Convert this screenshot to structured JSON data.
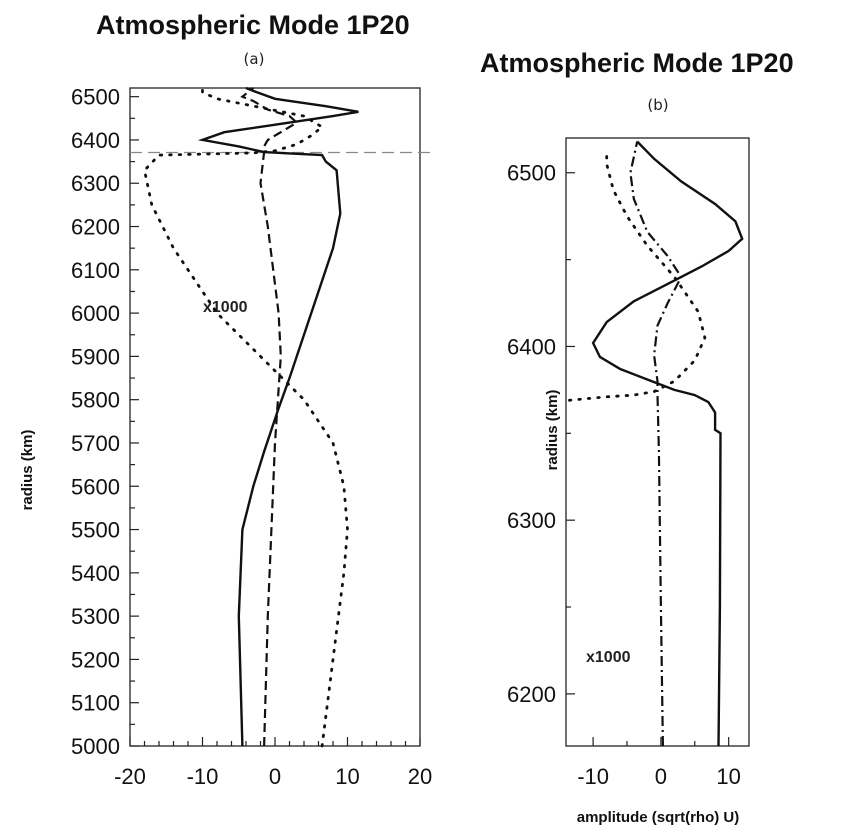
{
  "chart_data": [
    {
      "type": "line",
      "title": "Atmospheric Mode 1P20",
      "subtitle": "(a)",
      "xlabel": "",
      "ylabel": "radius (km)",
      "xlim": [
        -20,
        20
      ],
      "ylim": [
        5000,
        6520
      ],
      "xticks": [
        -20,
        -10,
        0,
        10,
        20
      ],
      "yticks": [
        5000,
        5100,
        5200,
        5300,
        5400,
        5500,
        5600,
        5700,
        5800,
        5900,
        6000,
        6100,
        6200,
        6300,
        6400,
        6500
      ],
      "reference_line_y": 6371,
      "annotation": "x1000",
      "series": [
        {
          "style": "solid",
          "points": [
            [
              -4.5,
              5000
            ],
            [
              -5,
              5300
            ],
            [
              -4.5,
              5500
            ],
            [
              -3,
              5600
            ],
            [
              -1.5,
              5680
            ],
            [
              0.5,
              5780
            ],
            [
              2,
              5850
            ],
            [
              4,
              5950
            ],
            [
              6,
              6050
            ],
            [
              8,
              6150
            ],
            [
              9,
              6230
            ],
            [
              8.5,
              6330
            ],
            [
              7,
              6350
            ],
            [
              6.5,
              6365
            ],
            [
              3,
              6368
            ],
            [
              -1.5,
              6372
            ],
            [
              -5,
              6385
            ],
            [
              -10,
              6400
            ],
            [
              -7,
              6418
            ],
            [
              2,
              6440
            ],
            [
              8,
              6455
            ],
            [
              11.5,
              6465
            ],
            [
              7,
              6478
            ],
            [
              0,
              6495
            ],
            [
              -2.5,
              6510
            ],
            [
              -4,
              6520
            ]
          ]
        },
        {
          "style": "dashed",
          "points": [
            [
              -1.5,
              5000
            ],
            [
              -1,
              5300
            ],
            [
              -0.5,
              5500
            ],
            [
              0,
              5700
            ],
            [
              0.8,
              5900
            ],
            [
              0.5,
              6000
            ],
            [
              -1,
              6200
            ],
            [
              -2,
              6300
            ],
            [
              -1.5,
              6372
            ],
            [
              -1.5,
              6385
            ],
            [
              -1,
              6400
            ],
            [
              1,
              6420
            ],
            [
              3,
              6440
            ],
            [
              2,
              6455
            ],
            [
              -1,
              6470
            ],
            [
              -3,
              6490
            ],
            [
              -4.5,
              6500
            ],
            [
              -3,
              6520
            ]
          ]
        },
        {
          "style": "dotted",
          "points": [
            [
              6.5,
              5000
            ],
            [
              8,
              5200
            ],
            [
              9.5,
              5400
            ],
            [
              10,
              5500
            ],
            [
              9.5,
              5600
            ],
            [
              8,
              5700
            ],
            [
              4,
              5800
            ],
            [
              -2,
              5900
            ],
            [
              -8,
              6000
            ],
            [
              -14,
              6150
            ],
            [
              -17,
              6250
            ],
            [
              -18,
              6330
            ],
            [
              -16,
              6365
            ],
            [
              -3,
              6370
            ],
            [
              0,
              6375
            ],
            [
              3,
              6390
            ],
            [
              5,
              6410
            ],
            [
              6.5,
              6430
            ],
            [
              4,
              6455
            ],
            [
              -2,
              6475
            ],
            [
              -8,
              6495
            ],
            [
              -10,
              6510
            ],
            [
              -10,
              6520
            ]
          ]
        }
      ]
    },
    {
      "type": "line",
      "title": "Atmospheric Mode 1P20",
      "subtitle": "(b)",
      "xlabel": "amplitude (sqrt(rho) U)",
      "ylabel": "radius (km)",
      "xlim": [
        -14,
        13
      ],
      "ylim": [
        6170,
        6520
      ],
      "xticks": [
        -10,
        0,
        10
      ],
      "yticks": [
        6200,
        6300,
        6400,
        6500
      ],
      "annotation": "x1000",
      "series": [
        {
          "style": "solid",
          "points": [
            [
              8.5,
              6170
            ],
            [
              8.7,
              6250
            ],
            [
              8.8,
              6350
            ],
            [
              8,
              6352
            ],
            [
              8,
              6362
            ],
            [
              7,
              6368
            ],
            [
              5,
              6372
            ],
            [
              2,
              6375
            ],
            [
              -2,
              6381
            ],
            [
              -6,
              6387
            ],
            [
              -9,
              6394
            ],
            [
              -10,
              6402
            ],
            [
              -8,
              6414
            ],
            [
              -4,
              6426
            ],
            [
              1,
              6436
            ],
            [
              6,
              6446
            ],
            [
              10,
              6455
            ],
            [
              12,
              6462
            ],
            [
              11,
              6472
            ],
            [
              8,
              6482
            ],
            [
              3,
              6495
            ],
            [
              -1,
              6508
            ],
            [
              -3.5,
              6518
            ]
          ]
        },
        {
          "style": "dashdot",
          "points": [
            [
              0.3,
              6170
            ],
            [
              0,
              6250
            ],
            [
              -0.3,
              6340
            ],
            [
              -0.5,
              6372
            ],
            [
              -0.5,
              6380
            ],
            [
              -1,
              6395
            ],
            [
              -0.5,
              6412
            ],
            [
              1,
              6425
            ],
            [
              3,
              6440
            ],
            [
              1,
              6452
            ],
            [
              -2,
              6466
            ],
            [
              -4,
              6485
            ],
            [
              -4.5,
              6500
            ],
            [
              -3.5,
              6518
            ]
          ]
        },
        {
          "style": "dotted",
          "points": [
            [
              -13.5,
              6369
            ],
            [
              -8,
              6371
            ],
            [
              -4,
              6372
            ],
            [
              -1,
              6374
            ],
            [
              2,
              6380
            ],
            [
              5,
              6392
            ],
            [
              6.5,
              6405
            ],
            [
              5.5,
              6420
            ],
            [
              2,
              6440
            ],
            [
              -2,
              6458
            ],
            [
              -5,
              6475
            ],
            [
              -7,
              6490
            ],
            [
              -8,
              6505
            ],
            [
              -8,
              6512
            ]
          ]
        }
      ]
    }
  ]
}
